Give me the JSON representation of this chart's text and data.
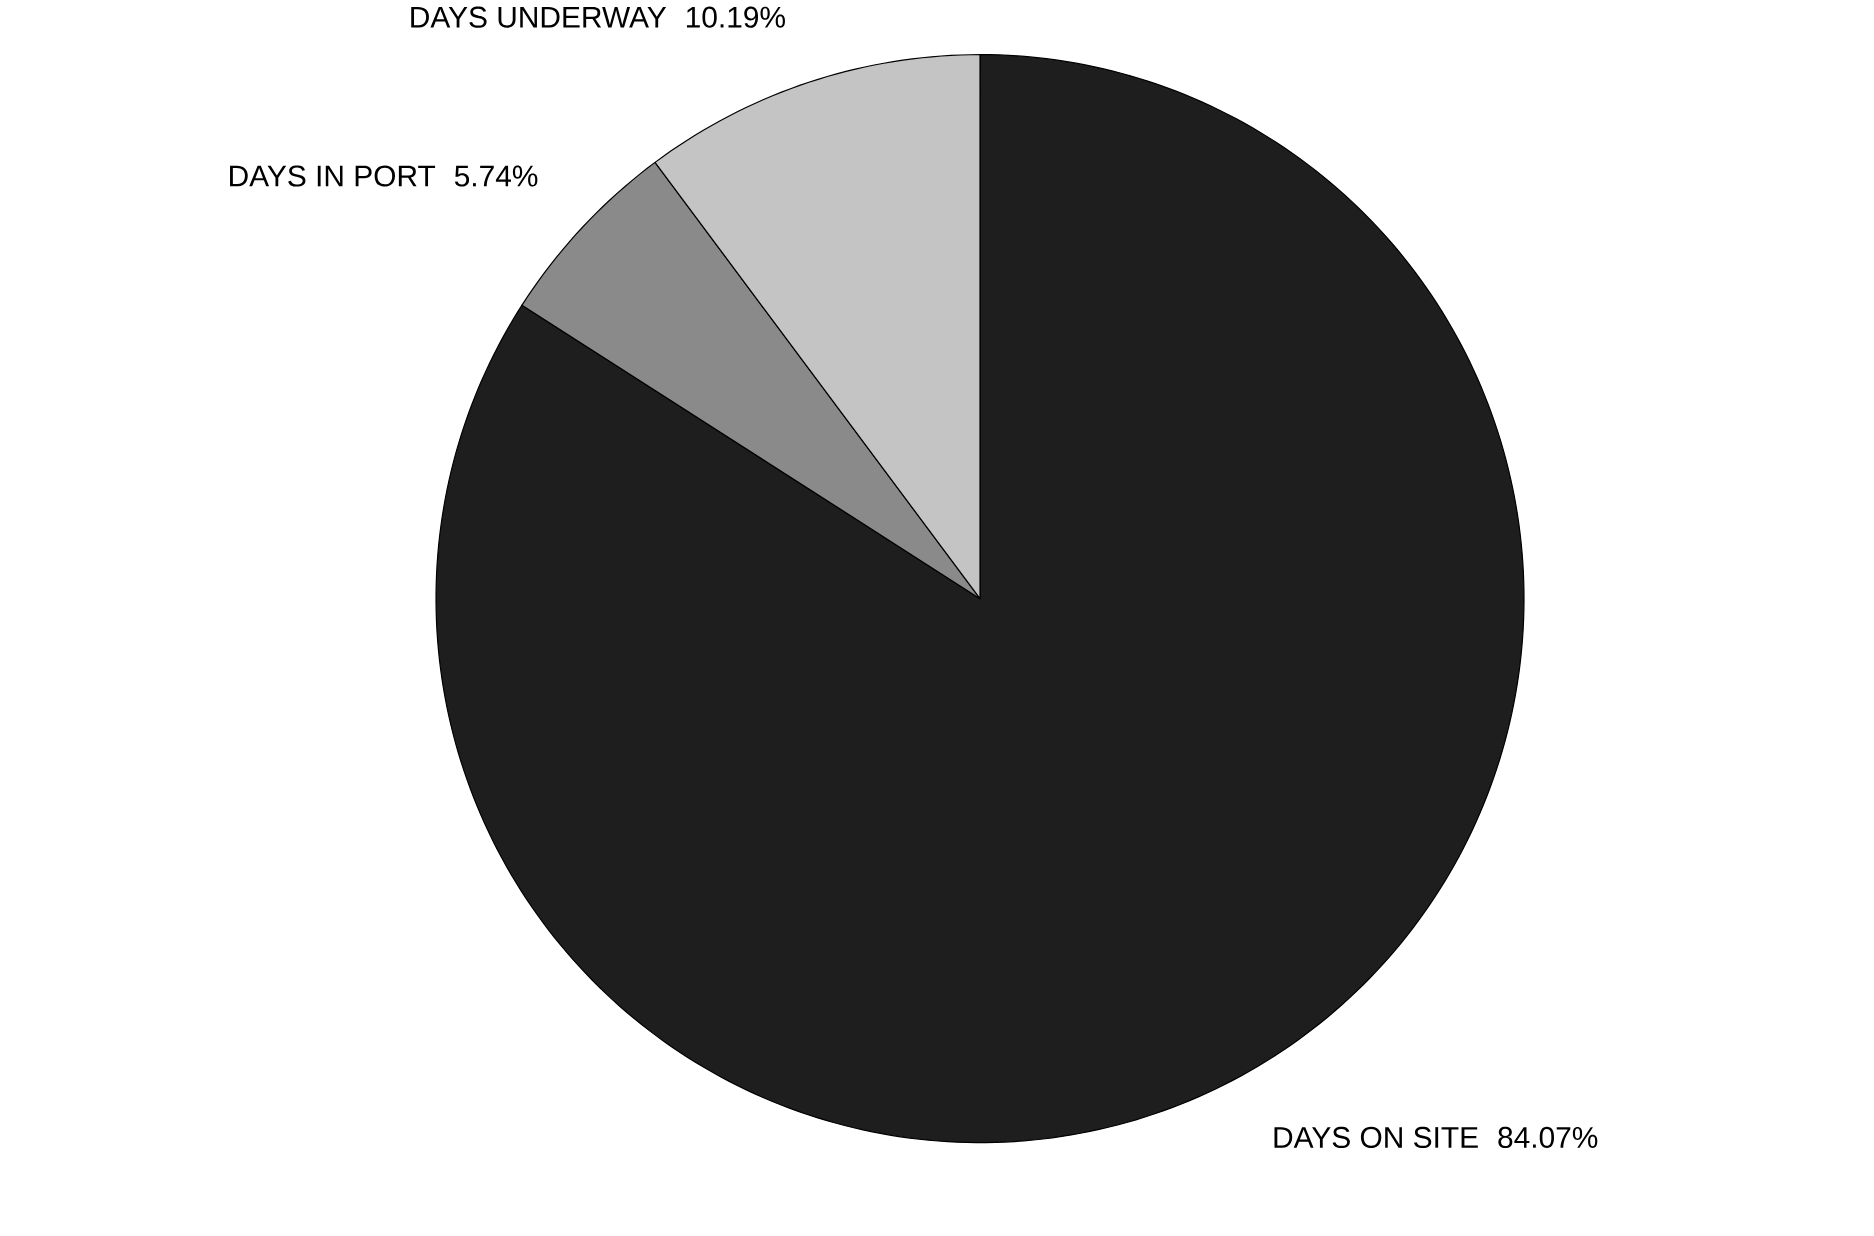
{
  "chart_data": {
    "type": "pie",
    "categories": [
      "DAYS ON SITE",
      "DAYS IN PORT",
      "DAYS UNDERWAY"
    ],
    "values": [
      84.07,
      5.74,
      10.19
    ],
    "value_labels": [
      "84.07%",
      "5.74%",
      "10.19%"
    ],
    "colors": [
      "#1e1e1e",
      "#8a8a8a",
      "#c4c4c4"
    ]
  }
}
